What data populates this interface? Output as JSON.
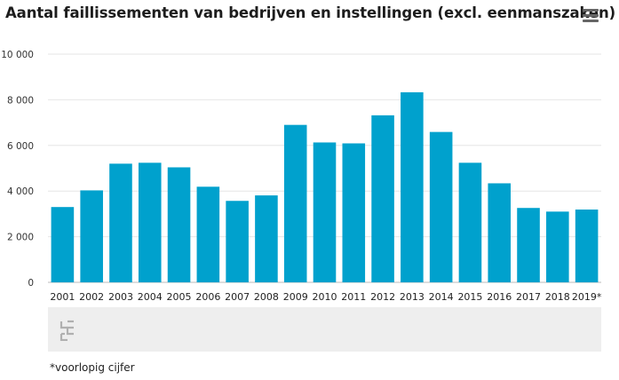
{
  "title": "Aantal faillissementen van bedrijven en instellingen (excl. eenmanszaken)",
  "menu_icon": "hamburger-menu-icon",
  "source_logo": "cbs-logo-icon",
  "footnote": "*voorlopig cijfer",
  "colors": {
    "bar": "#00a1cd",
    "grid": "#e6e6e6",
    "axis": "#bbbbbb",
    "panel": "#eeeeee"
  },
  "chart_data": {
    "type": "bar",
    "categories": [
      "2001",
      "2002",
      "2003",
      "2004",
      "2005",
      "2006",
      "2007",
      "2008",
      "2009",
      "2010",
      "2011",
      "2012",
      "2013",
      "2014",
      "2015",
      "2016",
      "2017",
      "2018",
      "2019*"
    ],
    "values": [
      3300,
      4030,
      5200,
      5240,
      5040,
      4190,
      3570,
      3810,
      6900,
      6130,
      6090,
      7320,
      8330,
      6590,
      5240,
      4340,
      3260,
      3100,
      3190
    ],
    "ylim": [
      0,
      10000
    ],
    "yticks": [
      0,
      2000,
      4000,
      6000,
      8000,
      10000
    ],
    "ytick_labels": [
      "0",
      "2 000",
      "4 000",
      "6 000",
      "8 000",
      "10 000"
    ],
    "grid": true,
    "legend": "none"
  }
}
